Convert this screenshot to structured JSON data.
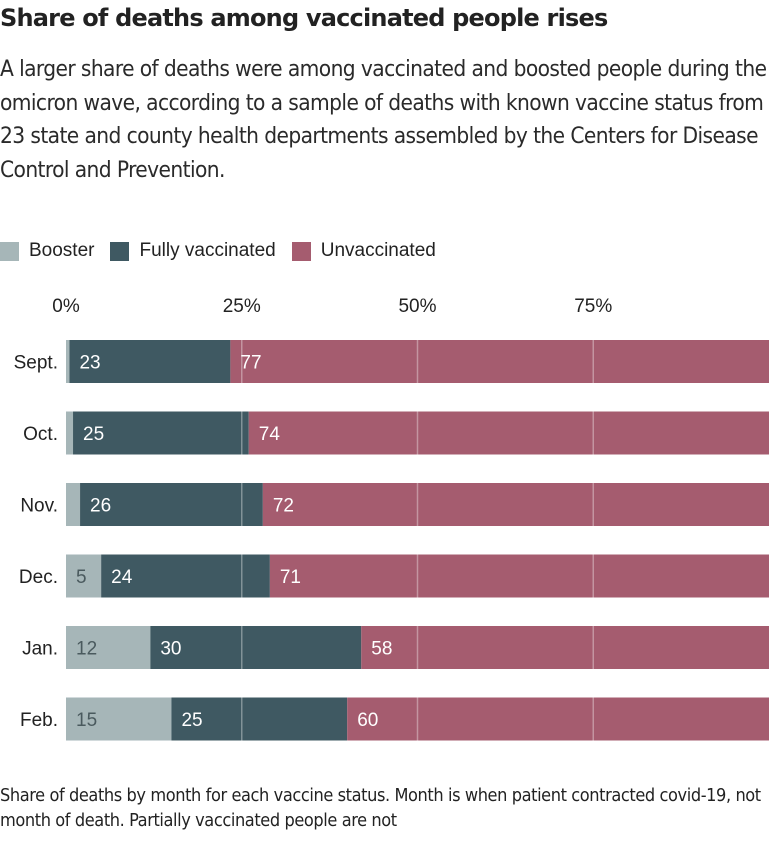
{
  "header": {
    "title": "Share of deaths among vaccinated people rises",
    "subtitle": "A larger share of deaths were among vaccinated and boosted people during the omicron wave, according to a sample of deaths with known vaccine status from 23 state and county health departments assembled by the Centers for Disease Control and Prevention."
  },
  "footer": {
    "note": "Share of deaths by month for each vaccine status. Month is when patient contracted covid-19, not month of death. Partially vaccinated people are not"
  },
  "chart_data": {
    "type": "bar",
    "orientation": "horizontal",
    "stacked": true,
    "title": "Share of deaths among vaccinated people rises",
    "xlabel": "",
    "ylabel": "",
    "xlim": [
      0,
      100
    ],
    "x_ticks": [
      0,
      25,
      50,
      75
    ],
    "x_tick_labels": [
      "0%",
      "25%",
      "50%",
      "75%"
    ],
    "grid": true,
    "legend_position": "top-left",
    "categories": [
      "Sept.",
      "Oct.",
      "Nov.",
      "Dec.",
      "Jan.",
      "Feb."
    ],
    "series": [
      {
        "name": "Booster",
        "color": "#a6b6b8",
        "label_color": "#4a5a5e",
        "values": [
          0.5,
          1,
          2,
          5,
          12,
          15
        ],
        "labels": [
          "",
          "",
          "",
          "5",
          "12",
          "15"
        ]
      },
      {
        "name": "Fully vaccinated",
        "color": "#3f5962",
        "label_color": "#ffffff",
        "values": [
          23,
          25,
          26,
          24,
          30,
          25
        ],
        "labels": [
          "23",
          "25",
          "26",
          "24",
          "30",
          "25"
        ]
      },
      {
        "name": "Unvaccinated",
        "color": "#a55c6f",
        "label_color": "#ffffff",
        "values": [
          77,
          74,
          72,
          71,
          58,
          60
        ],
        "labels": [
          "77",
          "74",
          "72",
          "71",
          "58",
          "60"
        ]
      }
    ]
  }
}
